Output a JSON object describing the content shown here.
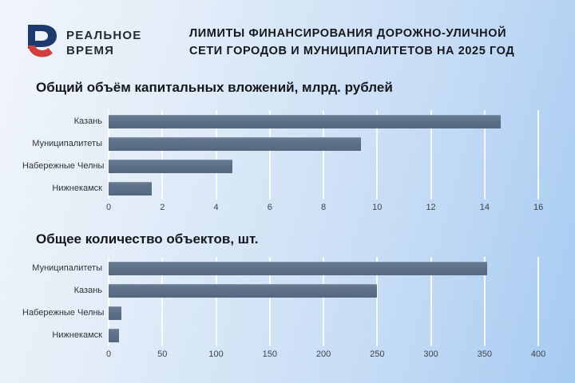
{
  "header": {
    "logo_line1": "РЕАЛЬНОЕ",
    "logo_line2": "ВРЕМЯ",
    "logo_mark_blue": "#1d3a6e",
    "logo_mark_red": "#d2403e",
    "title_line1": "ЛИМИТЫ ФИНАНСИРОВАНИЯ ДОРОЖНО-УЛИЧНОЙ",
    "title_line2": "СЕТИ ГОРОДОВ И МУНИЦИПАЛИТЕТОВ НА 2025 ГОД"
  },
  "colors": {
    "background_light": "#f1f5fa",
    "background_blue": "#a6cbf1",
    "bar": "#5d708a",
    "gridline": "#ffffff",
    "text_dark": "#14181d"
  },
  "chart_data": [
    {
      "type": "bar",
      "orientation": "horizontal",
      "title": "Общий объём капитальных вложений, млрд. рублей",
      "categories": [
        "Казань",
        "Муниципалитеты",
        "Набережные Челны",
        "Нижнекамск"
      ],
      "values": [
        14.6,
        9.4,
        4.6,
        1.6
      ],
      "xticks": [
        0,
        2,
        4,
        6,
        8,
        10,
        12,
        14,
        16
      ],
      "xlim": [
        0,
        16.8
      ],
      "grid": true,
      "legend": "none",
      "bar_color": "#5d708a"
    },
    {
      "type": "bar",
      "orientation": "horizontal",
      "title": "Общее количество объектов, шт.",
      "categories": [
        "Муниципалитеты",
        "Казань",
        "Набережные Челны",
        "Нижнекамск"
      ],
      "values": [
        352,
        250,
        12,
        10
      ],
      "xticks": [
        0,
        50,
        100,
        150,
        200,
        250,
        300,
        350,
        400
      ],
      "xlim": [
        0,
        420
      ],
      "grid": true,
      "legend": "none",
      "bar_color": "#5d708a"
    }
  ]
}
